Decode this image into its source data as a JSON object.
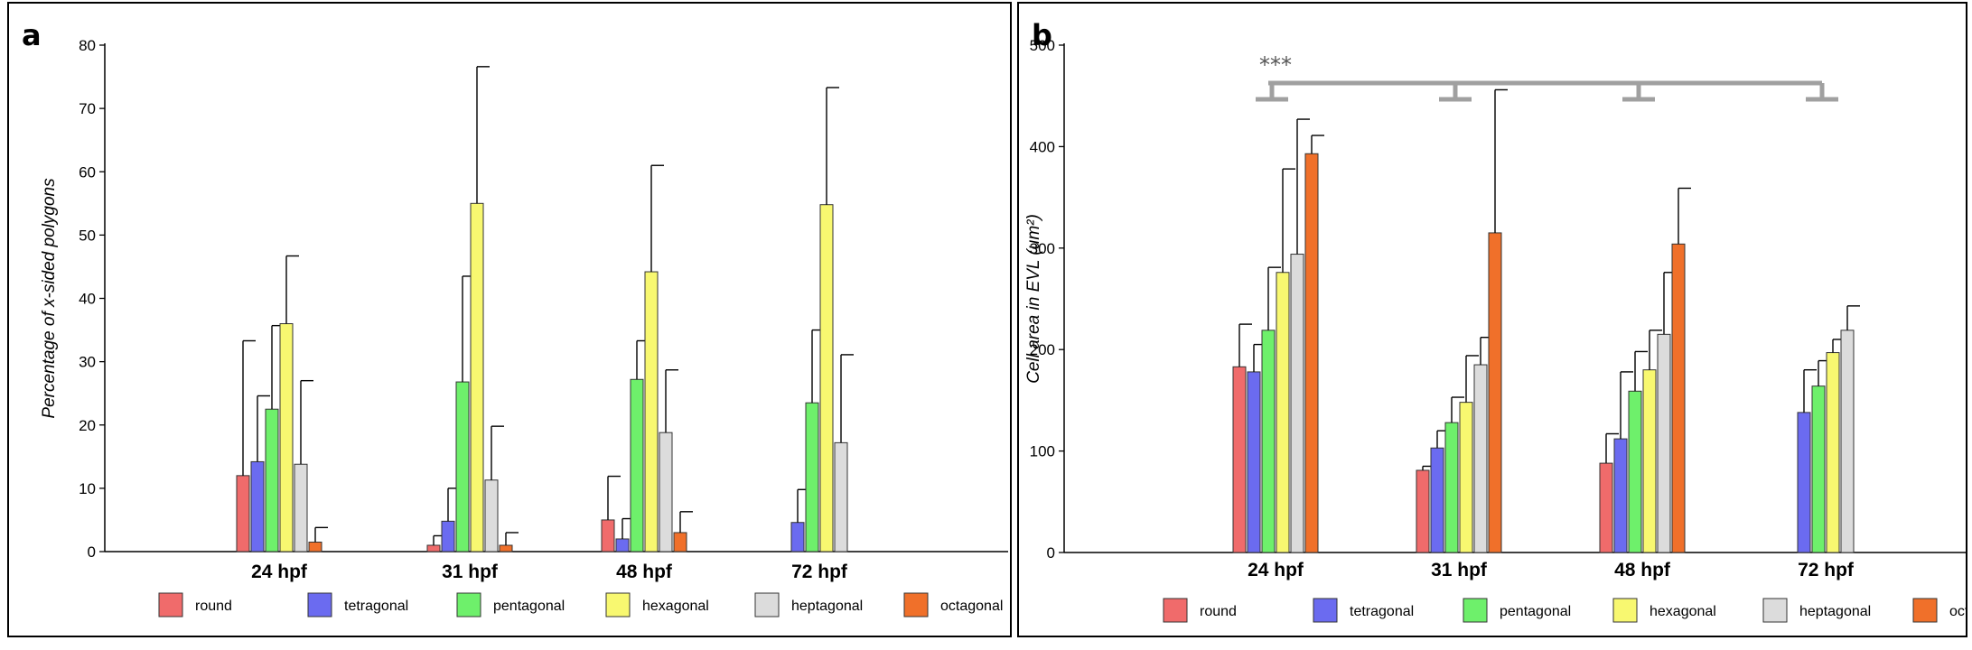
{
  "panels": {
    "a": {
      "label": "a"
    },
    "b": {
      "label": "b"
    }
  },
  "colors": {
    "round": "#f06b6b",
    "tetragonal": "#6b6bf0",
    "pentagonal": "#6ef06b",
    "hexagonal": "#f8f870",
    "heptagonal": "#dcdcdc",
    "octagonal": "#f0702a",
    "significance": "#a0a0a0"
  },
  "chart_data": [
    {
      "type": "bar",
      "panel": "a",
      "title": "",
      "xlabel": "",
      "ylabel": "Percentage of x-sided polygons",
      "ylim": [
        0,
        80
      ],
      "yticks": [
        0,
        10,
        20,
        30,
        40,
        50,
        60,
        70,
        80
      ],
      "categories": [
        "24 hpf",
        "31 hpf",
        "48 hpf",
        "72 hpf"
      ],
      "legend_position": "bottom",
      "error_bars": "upper",
      "series": [
        {
          "name": "round",
          "values": [
            12,
            1,
            5,
            0
          ],
          "errors": [
            21.3,
            1.5,
            6.9,
            0
          ]
        },
        {
          "name": "tetragonal",
          "values": [
            14.2,
            4.8,
            2,
            4.6
          ],
          "errors": [
            10.4,
            5.2,
            3.2,
            5.2
          ]
        },
        {
          "name": "pentagonal",
          "values": [
            22.5,
            26.8,
            27.2,
            23.5
          ],
          "errors": [
            13.2,
            16.7,
            6.1,
            11.5
          ]
        },
        {
          "name": "hexagonal",
          "values": [
            36,
            55,
            44.2,
            54.8
          ],
          "errors": [
            10.7,
            21.6,
            16.8,
            18.5
          ]
        },
        {
          "name": "heptagonal",
          "values": [
            13.8,
            11.3,
            18.8,
            17.2
          ],
          "errors": [
            13.2,
            8.5,
            9.9,
            13.9
          ]
        },
        {
          "name": "octagonal",
          "values": [
            1.5,
            1,
            3,
            0
          ],
          "errors": [
            2.3,
            2,
            3.3,
            0
          ]
        }
      ]
    },
    {
      "type": "bar",
      "panel": "b",
      "title": "",
      "xlabel": "",
      "ylabel": "Cell area in EVL (um²)",
      "ylim": [
        0,
        500
      ],
      "yticks": [
        0,
        100,
        200,
        300,
        400,
        500
      ],
      "categories": [
        "24 hpf",
        "31 hpf",
        "48 hpf",
        "72 hpf"
      ],
      "legend_position": "bottom",
      "error_bars": "upper",
      "significance": {
        "label": "***"
      },
      "series": [
        {
          "name": "round",
          "values": [
            183,
            81,
            88,
            0
          ],
          "errors": [
            42,
            4,
            29,
            0
          ]
        },
        {
          "name": "tetragonal",
          "values": [
            178,
            103,
            112,
            138
          ],
          "errors": [
            27,
            17,
            66,
            42
          ]
        },
        {
          "name": "pentagonal",
          "values": [
            219,
            128,
            159,
            164
          ],
          "errors": [
            62,
            25,
            39,
            25
          ]
        },
        {
          "name": "hexagonal",
          "values": [
            276,
            148,
            180,
            197
          ],
          "errors": [
            102,
            46,
            39,
            13
          ]
        },
        {
          "name": "heptagonal",
          "values": [
            294,
            185,
            215,
            219
          ],
          "errors": [
            133,
            27,
            61,
            24
          ]
        },
        {
          "name": "octagonal",
          "values": [
            393,
            315,
            304,
            0
          ],
          "errors": [
            18,
            141,
            55,
            0
          ]
        }
      ]
    }
  ]
}
